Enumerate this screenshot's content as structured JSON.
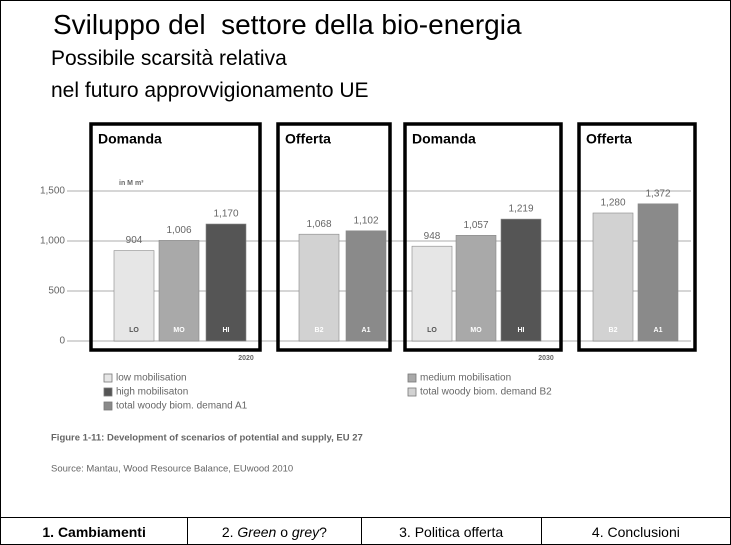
{
  "slide": {
    "title": "Sviluppo del  settore della bio-energia",
    "subtitle": [
      "Possibile scarsità relativa",
      "nel futuro approvvigionamento UE"
    ],
    "boxes": [
      "Domanda",
      "Offerta",
      "Domanda",
      "Offerta"
    ],
    "tabs": [
      [
        "1. Cambiamenti"
      ],
      [
        "2. ",
        "Green",
        " o ",
        "grey",
        "?"
      ],
      [
        "3. Politica offerta"
      ],
      [
        "4. Conclusioni"
      ]
    ]
  },
  "chart_data": {
    "type": "bar",
    "unit": "in M m³",
    "categories": [
      "LO",
      "MO",
      "HI",
      "B2",
      "A1",
      "LO",
      "MO",
      "HI",
      "B2",
      "A1"
    ],
    "values": [
      904,
      1006,
      1170,
      1068,
      1102,
      948,
      1057,
      1219,
      1280,
      1372
    ],
    "value_labels": [
      "904",
      "1,006",
      "1,170",
      "1,068",
      "1,102",
      "948",
      "1,057",
      "1,219",
      "1,280",
      "1,372"
    ],
    "colors": [
      "#e6e6e6",
      "#a9a9a9",
      "#555555",
      "#d2d2d2",
      "#8a8a8a",
      "#e6e6e6",
      "#a9a9a9",
      "#555555",
      "#d2d2d2",
      "#8a8a8a"
    ],
    "groups": [
      "2020",
      "2030"
    ],
    "ylim": [
      0,
      1500
    ],
    "yticks": [
      0,
      500,
      {
        "value": 1000,
        "label": "1,000"
      },
      {
        "value": 1500,
        "label": "1,500"
      }
    ],
    "grid": true,
    "legend": [
      {
        "name": "low mobilisation",
        "color": "#e6e6e6"
      },
      {
        "name": "medium mobilisation",
        "color": "#a9a9a9"
      },
      {
        "name": "high mobilisaton",
        "color": "#555555"
      },
      {
        "name": "total woody biom. demand B2",
        "color": "#d2d2d2"
      },
      {
        "name": "total woody biom. demand A1",
        "color": "#8a8a8a"
      }
    ],
    "caption": "Figure 1-11: Development of scenarios of potential and supply, EU 27",
    "source": "Source: Mantau, Wood Resource Balance, EUwood 2010"
  }
}
